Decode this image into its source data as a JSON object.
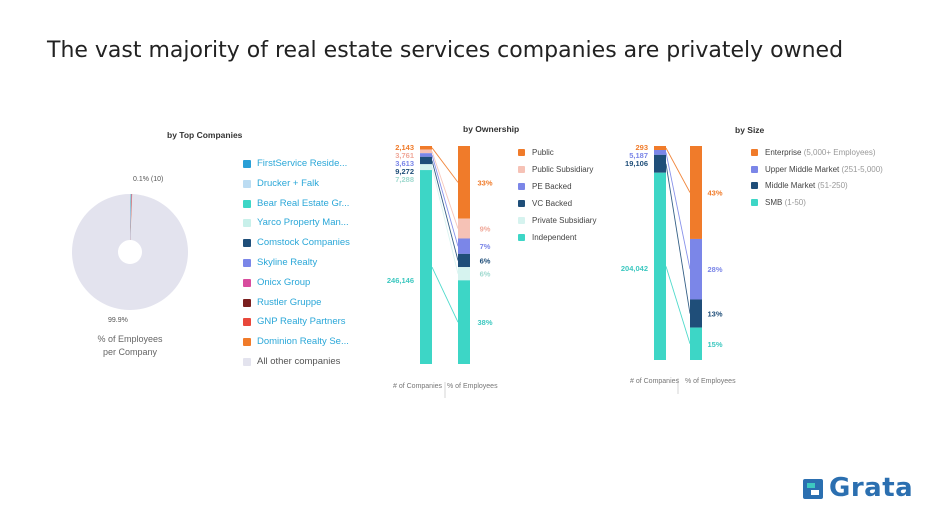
{
  "title": "The vast majority of real estate services companies are privately owned",
  "brand": {
    "name": "Grata",
    "color": "#2b6fb0",
    "accent": "#3dc8c0",
    "icon": "grata-logo-icon"
  },
  "chart_data": [
    {
      "type": "pie",
      "title": "by Top Companies",
      "caption_line1": "% of Employees",
      "caption_line2": "per Company",
      "small_label": "0.1% (10)",
      "big_label": "99.9%",
      "slices": [
        {
          "label": "FirstService Reside...",
          "value": 0.03,
          "color": "#2a9fd6"
        },
        {
          "label": "Drucker + Falk",
          "value": 0.01,
          "color": "#bcdcf2"
        },
        {
          "label": "Bear Real Estate Gr...",
          "value": 0.01,
          "color": "#3dd6c6"
        },
        {
          "label": "Yarco Property Man...",
          "value": 0.01,
          "color": "#c8f0ea"
        },
        {
          "label": "Comstock Companies",
          "value": 0.01,
          "color": "#1f4e79"
        },
        {
          "label": "Skyline Realty",
          "value": 0.005,
          "color": "#7b86e8"
        },
        {
          "label": "Onicx Group",
          "value": 0.005,
          "color": "#d84c9e"
        },
        {
          "label": "Rustler Gruppe",
          "value": 0.005,
          "color": "#7a1f1f"
        },
        {
          "label": "GNP Realty Partners",
          "value": 0.005,
          "color": "#e8483b"
        },
        {
          "label": "Dominion Realty Se...",
          "value": 0.02,
          "color": "#f07b2a"
        },
        {
          "label": "All other companies",
          "value": 99.9,
          "color": "#e3e3ee"
        }
      ]
    },
    {
      "type": "bar",
      "title": "by Ownership",
      "xlabels": [
        "# of Companies",
        "% of Employees"
      ],
      "series": [
        {
          "name": "Public",
          "count": 2143,
          "count_label": "2,143",
          "pct": 33,
          "pct_label": "33%",
          "color": "#f07b2a",
          "pct_label_color": "#f07b2a"
        },
        {
          "name": "Public Subsidiary",
          "count": 3761,
          "count_label": "3,761",
          "pct": 9,
          "pct_label": "9%",
          "color": "#f6c2b6",
          "pct_label_color": "#f0a899"
        },
        {
          "name": "PE Backed",
          "count": 3613,
          "count_label": "3,613",
          "pct": 7,
          "pct_label": "7%",
          "color": "#7b86e8",
          "pct_label_color": "#7b86e8"
        },
        {
          "name": "VC Backed",
          "count": 9272,
          "count_label": "9,272",
          "pct": 6,
          "pct_label": "6%",
          "color": "#1f4e79",
          "pct_label_color": "#1f4e79"
        },
        {
          "name": "Private Subsidiary",
          "count": 7288,
          "count_label": "7,288",
          "pct": 6,
          "pct_label": "6%",
          "color": "#d6f3ef",
          "pct_label_color": "#9fd9cf"
        },
        {
          "name": "Independent",
          "count": 246146,
          "count_label": "246,146",
          "pct": 38,
          "pct_label": "38%",
          "color": "#3dd6c6",
          "pct_label_color": "#3dc8c0"
        }
      ]
    },
    {
      "type": "bar",
      "title": "by Size",
      "xlabels": [
        "# of Companies",
        "% of Employees"
      ],
      "series": [
        {
          "name": "Enterprise",
          "sub": "(5,000+ Employees)",
          "count": 293,
          "count_label": "293",
          "pct": 43,
          "pct_label": "43%",
          "color": "#f07b2a",
          "pct_label_color": "#f07b2a"
        },
        {
          "name": "Upper Middle Market",
          "sub": "(251-5,000)",
          "count": 5187,
          "count_label": "5,187",
          "pct": 28,
          "pct_label": "28%",
          "color": "#7b86e8",
          "pct_label_color": "#7b86e8"
        },
        {
          "name": "Middle Market",
          "sub": "(51-250)",
          "count": 19106,
          "count_label": "19,106",
          "pct": 13,
          "pct_label": "13%",
          "color": "#1f4e79",
          "pct_label_color": "#1f4e79"
        },
        {
          "name": "SMB",
          "sub": "(1-50)",
          "count": 204042,
          "count_label": "204,042",
          "pct": 15,
          "pct_label": "15%",
          "color": "#3dd6c6",
          "pct_label_color": "#3dc8c0"
        }
      ]
    }
  ]
}
